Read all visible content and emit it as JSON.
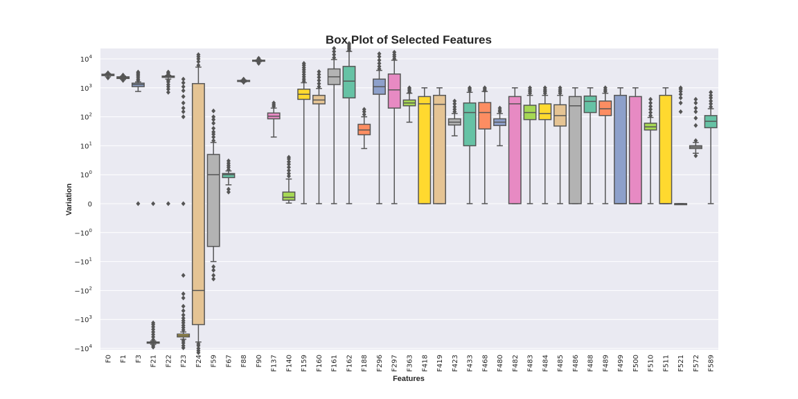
{
  "chart_data": {
    "type": "box",
    "title": "Box Plot of Selected Features",
    "xlabel": "Features",
    "ylabel": "Variation",
    "yscale": "symlog",
    "grid": true,
    "y_ticks": [
      {
        "base": "10",
        "exp": "4",
        "sign": ""
      },
      {
        "base": "10",
        "exp": "3",
        "sign": ""
      },
      {
        "base": "10",
        "exp": "2",
        "sign": ""
      },
      {
        "base": "10",
        "exp": "1",
        "sign": ""
      },
      {
        "base": "10",
        "exp": "0",
        "sign": ""
      },
      {
        "base": "0",
        "exp": "",
        "sign": ""
      },
      {
        "base": "10",
        "exp": "0",
        "sign": "−"
      },
      {
        "base": "10",
        "exp": "1",
        "sign": "−"
      },
      {
        "base": "10",
        "exp": "2",
        "sign": "−"
      },
      {
        "base": "10",
        "exp": "3",
        "sign": "−"
      },
      {
        "base": "10",
        "exp": "4",
        "sign": "−"
      }
    ],
    "categories": [
      "F0",
      "F1",
      "F3",
      "F21",
      "F22",
      "F23",
      "F24",
      "F59",
      "F67",
      "F88",
      "F90",
      "F137",
      "F140",
      "F159",
      "F160",
      "F161",
      "F162",
      "F188",
      "F296",
      "F297",
      "F363",
      "F418",
      "F419",
      "F423",
      "F433",
      "F468",
      "F480",
      "F482",
      "F483",
      "F484",
      "F485",
      "F486",
      "F488",
      "F489",
      "F499",
      "F500",
      "F510",
      "F511",
      "F521",
      "F572",
      "F589"
    ],
    "boxes": [
      {
        "color": "#66c2a5",
        "wlo": 2400,
        "q1": 2650,
        "med": 2800,
        "q3": 2950,
        "whi": 3100,
        "outliers": [
          2200,
          3300
        ]
      },
      {
        "color": "#fc8d62",
        "wlo": 1950,
        "q1": 2100,
        "med": 2250,
        "q3": 2400,
        "whi": 2550,
        "outliers": [
          1800,
          2750
        ]
      },
      {
        "color": "#8da0cb",
        "wlo": 750,
        "q1": 1100,
        "med": 1300,
        "q3": 1450,
        "whi": 1600,
        "outliers": [
          1800,
          2000,
          2300,
          2600,
          2900,
          3200,
          3500,
          0
        ]
      },
      {
        "color": "#e78ac3",
        "wlo": -7200,
        "q1": -6600,
        "med": -6300,
        "q3": -6000,
        "whi": -5500,
        "outliers": [
          -8000,
          -9000,
          -5000,
          -4000,
          -3300,
          -2700,
          -2200,
          -1800,
          -1500,
          -1300,
          0
        ]
      },
      {
        "color": "#a6d854",
        "wlo": 2000,
        "q1": 2300,
        "med": 2450,
        "q3": 2550,
        "whi": 2700,
        "outliers": [
          700,
          900,
          1100,
          1300,
          1600,
          1800,
          2900,
          3200,
          3500,
          0
        ]
      },
      {
        "color": "#ffd92f",
        "wlo": -4800,
        "q1": -4000,
        "med": -3600,
        "q3": -3200,
        "whi": -2700,
        "outliers": [
          -9500,
          -8000,
          -6500,
          -5500,
          -2300,
          -1900,
          -1600,
          -1300,
          -1100,
          -900,
          -700,
          -500,
          -350,
          -180,
          -130,
          -30,
          100,
          150,
          200,
          300,
          500,
          800,
          1100,
          1500,
          2000,
          0
        ]
      },
      {
        "color": "#e5c494",
        "wlo": -6000,
        "q1": -1500,
        "med": -100,
        "q3": 1400,
        "whi": 5200,
        "outliers": [
          -14000,
          -12000,
          -10000,
          -8000,
          -7000,
          6000,
          8000,
          10000,
          12000,
          14000
        ]
      },
      {
        "color": "#b3b3b3",
        "wlo": -10,
        "q1": -3,
        "med": 1,
        "q3": 5,
        "whi": 13,
        "outliers": [
          -40,
          -30,
          -20,
          -15,
          15,
          20,
          25,
          30,
          40,
          60,
          80,
          100,
          160
        ]
      },
      {
        "color": "#66c2a5",
        "wlo": 0.65,
        "q1": 0.9,
        "med": 1,
        "q3": 1.1,
        "whi": 1.35,
        "outliers": [
          0.5,
          0.4,
          1.5,
          1.8,
          2.1,
          2.5,
          3
        ]
      },
      {
        "color": "#fc8d62",
        "wlo": 1600,
        "q1": 1680,
        "med": 1750,
        "q3": 1800,
        "whi": 1860,
        "outliers": [
          1550,
          1950,
          2000
        ]
      },
      {
        "color": "#8da0cb",
        "wlo": 8000,
        "q1": 8400,
        "med": 8700,
        "q3": 9000,
        "whi": 9300,
        "outliers": [
          7500,
          7000,
          9800,
          10500
        ]
      },
      {
        "color": "#e78ac3",
        "wlo": 20,
        "q1": 85,
        "med": 105,
        "q3": 135,
        "whi": 200,
        "outliers": [
          230,
          260,
          300
        ]
      },
      {
        "color": "#a6d854",
        "wlo": 0.02,
        "q1": 0.12,
        "med": 0.22,
        "q3": 0.4,
        "whi": 0.85,
        "outliers": [
          0.95,
          1.1,
          1.4,
          1.8,
          2.3,
          2.8,
          3.5,
          4
        ]
      },
      {
        "color": "#ffd92f",
        "wlo": 0,
        "q1": 400,
        "med": 600,
        "q3": 900,
        "whi": 1500,
        "outliers": [
          1700,
          2000,
          2400,
          2900,
          3500,
          4200,
          5000,
          6000,
          7000
        ]
      },
      {
        "color": "#e5c494",
        "wlo": 0,
        "q1": 280,
        "med": 380,
        "q3": 550,
        "whi": 950,
        "outliers": [
          1100,
          1400,
          1800,
          2300,
          2900,
          3600
        ]
      },
      {
        "color": "#b3b3b3",
        "wlo": 0,
        "q1": 1300,
        "med": 2400,
        "q3": 4500,
        "whi": 9500,
        "outliers": [
          11000,
          14000,
          18000,
          23000
        ]
      },
      {
        "color": "#66c2a5",
        "wlo": 0,
        "q1": 450,
        "med": 1700,
        "q3": 5500,
        "whi": 18000,
        "outliers": [
          20000,
          23000,
          26000,
          30000,
          34000
        ]
      },
      {
        "color": "#fc8d62",
        "wlo": 8,
        "q1": 24,
        "med": 35,
        "q3": 55,
        "whi": 100,
        "outliers": [
          120,
          150,
          180
        ]
      },
      {
        "color": "#8da0cb",
        "wlo": 0,
        "q1": 600,
        "med": 1100,
        "q3": 2000,
        "whi": 4000,
        "outliers": [
          4500,
          5500,
          7000,
          9000,
          12000,
          15000
        ]
      },
      {
        "color": "#e78ac3",
        "wlo": 0,
        "q1": 200,
        "med": 850,
        "q3": 3000,
        "whi": 9000,
        "outliers": [
          10000,
          12000,
          14000,
          17000
        ]
      },
      {
        "color": "#a6d854",
        "wlo": 65,
        "q1": 240,
        "med": 300,
        "q3": 380,
        "whi": 650,
        "outliers": [
          700,
          800,
          900,
          1000
        ]
      },
      {
        "color": "#ffd92f",
        "wlo": 0,
        "q1": 0,
        "med": 280,
        "q3": 500,
        "whi": 1000,
        "outliers": []
      },
      {
        "color": "#e5c494",
        "wlo": 0,
        "q1": 0,
        "med": 270,
        "q3": 550,
        "whi": 1000,
        "outliers": []
      },
      {
        "color": "#b3b3b3",
        "wlo": 22,
        "q1": 52,
        "med": 65,
        "q3": 85,
        "whi": 130,
        "outliers": [
          150,
          180,
          220,
          280,
          350
        ]
      },
      {
        "color": "#66c2a5",
        "wlo": 0,
        "q1": 10,
        "med": 140,
        "q3": 300,
        "whi": 700,
        "outliers": [
          800,
          900,
          1000
        ]
      },
      {
        "color": "#fc8d62",
        "wlo": 0,
        "q1": 38,
        "med": 140,
        "q3": 310,
        "whi": 750,
        "outliers": [
          800,
          900,
          1000
        ]
      },
      {
        "color": "#8da0cb",
        "wlo": 10,
        "q1": 50,
        "med": 65,
        "q3": 85,
        "whi": 130,
        "outliers": [
          150,
          170,
          200
        ]
      },
      {
        "color": "#e78ac3",
        "wlo": 0,
        "q1": 0,
        "med": 280,
        "q3": 500,
        "whi": 1000,
        "outliers": []
      },
      {
        "color": "#a6d854",
        "wlo": 0,
        "q1": 80,
        "med": 140,
        "q3": 250,
        "whi": 550,
        "outliers": [
          650,
          750,
          850,
          1000
        ]
      },
      {
        "color": "#ffd92f",
        "wlo": 0,
        "q1": 80,
        "med": 130,
        "q3": 280,
        "whi": 550,
        "outliers": [
          650,
          750,
          850,
          1000
        ]
      },
      {
        "color": "#e5c494",
        "wlo": 0,
        "q1": 48,
        "med": 110,
        "q3": 260,
        "whi": 550,
        "outliers": [
          650,
          750,
          850,
          1000
        ]
      },
      {
        "color": "#b3b3b3",
        "wlo": 0,
        "q1": 0,
        "med": 240,
        "q3": 500,
        "whi": 1000,
        "outliers": []
      },
      {
        "color": "#66c2a5",
        "wlo": 0,
        "q1": 140,
        "med": 340,
        "q3": 520,
        "whi": 1000,
        "outliers": []
      },
      {
        "color": "#fc8d62",
        "wlo": 0,
        "q1": 110,
        "med": 190,
        "q3": 350,
        "whi": 650,
        "outliers": [
          750,
          850,
          1000
        ]
      },
      {
        "color": "#8da0cb",
        "wlo": 0,
        "q1": 0,
        "med": 0,
        "q3": 550,
        "whi": 1000,
        "outliers": []
      },
      {
        "color": "#e78ac3",
        "wlo": 0,
        "q1": 0,
        "med": 0,
        "q3": 500,
        "whi": 1000,
        "outliers": []
      },
      {
        "color": "#a6d854",
        "wlo": 0,
        "q1": 35,
        "med": 45,
        "q3": 60,
        "whi": 95,
        "outliers": [
          110,
          140,
          180,
          230,
          300,
          400
        ]
      },
      {
        "color": "#ffd92f",
        "wlo": 0,
        "q1": 0,
        "med": 0,
        "q3": 550,
        "whi": 1000,
        "outliers": []
      },
      {
        "color": "#e5c494",
        "wlo": 0,
        "q1": 0,
        "med": 0,
        "q3": 0,
        "whi": 0,
        "outliers": [
          150,
          300,
          450,
          600,
          750,
          900,
          1000
        ]
      },
      {
        "color": "#b3b3b3",
        "wlo": 5.5,
        "q1": 8,
        "med": 9,
        "q3": 10,
        "whi": 13,
        "outliers": [
          4.5,
          15,
          50,
          90,
          150,
          200,
          300,
          400
        ]
      },
      {
        "color": "#66c2a5",
        "wlo": 0,
        "q1": 42,
        "med": 70,
        "q3": 110,
        "whi": 190,
        "outliers": [
          220,
          280,
          350,
          450,
          550,
          700
        ]
      }
    ]
  }
}
